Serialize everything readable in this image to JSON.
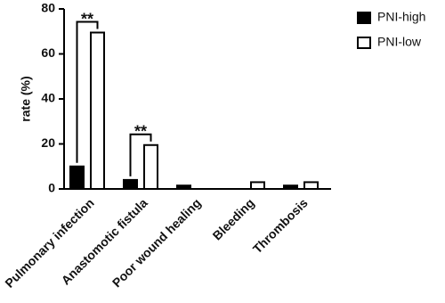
{
  "chart_data": {
    "type": "bar",
    "y_label": "rate (%)",
    "categories": [
      "Pulmonary infection",
      "Anastomotic fistula",
      "Poor wound healing",
      "Bleeding",
      "Thrombosis"
    ],
    "series": [
      {
        "name": "PNI-high",
        "color": "#000000",
        "values": [
          10,
          4,
          1.5,
          0,
          1.5
        ]
      },
      {
        "name": "PNI-low",
        "color": "#ffffff",
        "values": [
          69.5,
          19.5,
          0,
          3,
          3
        ]
      }
    ],
    "ylim": [
      0,
      80
    ],
    "yticks": [
      0,
      20,
      40,
      60,
      80
    ],
    "annotations": [
      "**",
      "**"
    ],
    "legend": "top-right"
  }
}
